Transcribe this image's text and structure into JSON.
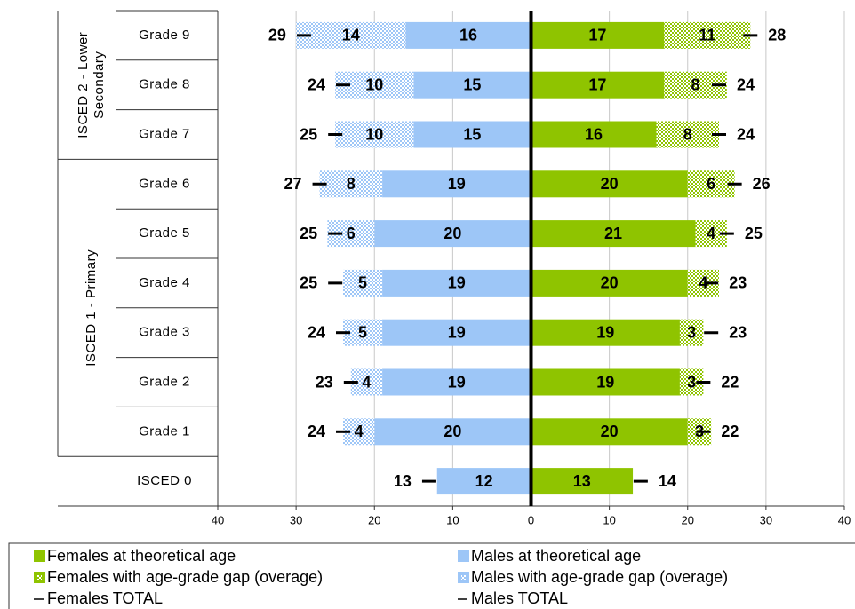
{
  "chart_data": {
    "type": "bar",
    "orientation": "horizontal",
    "categories": [
      "Grade 9",
      "Grade 8",
      "Grade 7",
      "Grade 6",
      "Grade 5",
      "Grade 4",
      "Grade 3",
      "Grade 2",
      "Grade 1",
      "ISCED 0"
    ],
    "groups": [
      {
        "label_lines": [
          "ISCED 2 - Lower",
          "Secondary"
        ],
        "categories": [
          "Grade 9",
          "Grade 8",
          "Grade 7"
        ]
      },
      {
        "label_lines": [
          "ISCED 1 - Primary"
        ],
        "categories": [
          "Grade 6",
          "Grade 5",
          "Grade 4",
          "Grade 3",
          "Grade 2",
          "Grade 1"
        ]
      }
    ],
    "series": [
      {
        "name": "Females at theoretical age",
        "side": "right",
        "style": "bar",
        "color": "#8fc400",
        "label_color": "#1f3300",
        "values": [
          17,
          17,
          16,
          20,
          21,
          20,
          19,
          19,
          20,
          13
        ]
      },
      {
        "name": "Females with age-grade gap (overage)",
        "side": "right",
        "style": "hatched",
        "color": "#8fc400",
        "label_color": "#3c9a78",
        "values": [
          11,
          8,
          8,
          6,
          4,
          4,
          3,
          3,
          3,
          null
        ]
      },
      {
        "name": "Females TOTAL",
        "side": "right",
        "style": "total",
        "color": "#000000",
        "label_color": "#000000",
        "values": [
          28,
          24,
          24,
          26,
          25,
          23,
          23,
          22,
          22,
          14
        ]
      },
      {
        "name": "Males at theoretical age",
        "side": "left",
        "style": "bar",
        "color": "#9dc6f7",
        "label_color": "#14309a",
        "values": [
          16,
          15,
          15,
          19,
          20,
          19,
          19,
          19,
          20,
          12
        ]
      },
      {
        "name": "Males with age-grade gap (overage)",
        "side": "left",
        "style": "hatched",
        "color": "#9dc6f7",
        "label_color": "#2f64d4",
        "values": [
          14,
          10,
          10,
          8,
          6,
          5,
          5,
          4,
          4,
          null
        ]
      },
      {
        "name": "Males TOTAL",
        "side": "left",
        "style": "total",
        "color": "#000000",
        "label_color": "#000000",
        "values": [
          29,
          24,
          25,
          27,
          25,
          25,
          24,
          23,
          24,
          13
        ]
      }
    ],
    "xlim": [
      -40,
      40
    ],
    "xticks": [
      {
        "value": -40,
        "label": "40"
      },
      {
        "value": -30,
        "label": "30"
      },
      {
        "value": -20,
        "label": "20"
      },
      {
        "value": -10,
        "label": "10"
      },
      0,
      10,
      20,
      30,
      40
    ],
    "grid": true
  }
}
